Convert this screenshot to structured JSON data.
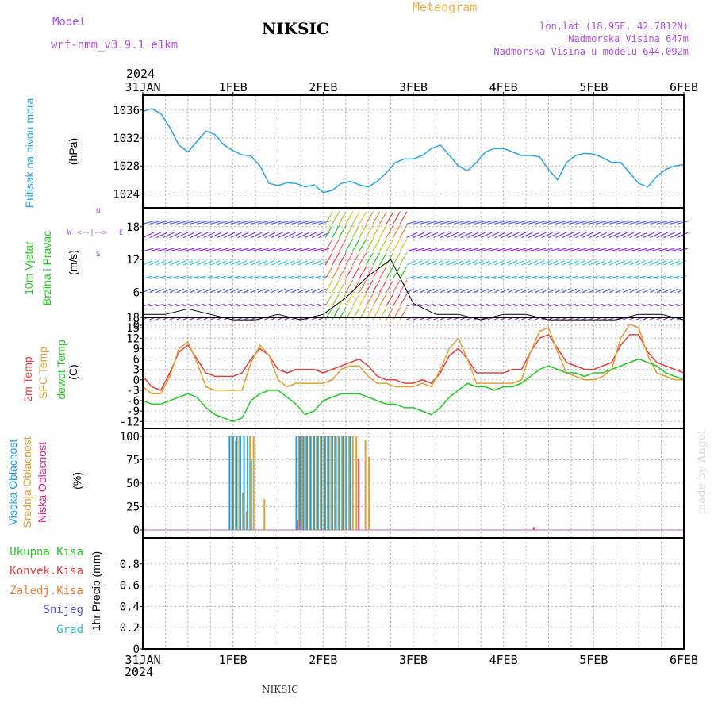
{
  "header": {
    "model_label": "Model",
    "model_name": "wrf-nmm_v3.9.1  e1km",
    "station": "NIKSIC",
    "meteogram_label": "Meteogram",
    "lonlat": "lon,lat (18.95E, 42.7812N)",
    "altitude": "Nadmorska Visina 647m",
    "model_altitude": "Nadmorska Visina u modelu 644.092m",
    "footer_station": "NIKSIC",
    "credit": "made by Angel"
  },
  "time_axis": {
    "year": "2024",
    "ticks": [
      "31JAN",
      "1FEB",
      "2FEB",
      "3FEB",
      "4FEB",
      "5FEB",
      "6FEB"
    ]
  },
  "panel_labels": {
    "pressure": {
      "name": "Pritisak na nivou mora",
      "unit": "(hPa)"
    },
    "wind": {
      "name1": "10m Vjetar",
      "name2": "Brzina i Pravac",
      "unit": "(m/s)",
      "compass_n": "N",
      "compass_s": "S",
      "compass_w": "W",
      "compass_e": "E"
    },
    "temp": {
      "l1": "2m Temp",
      "l2": "SFC Temp",
      "l3": "dewpt Temp",
      "unit": "(C)"
    },
    "cloud": {
      "l1": "Visoka Oblacnost",
      "l2": "Srednja Oblacnost",
      "l3": "Niska Oblacnost",
      "unit": "(%)"
    },
    "precip": {
      "items": [
        "Ukupna Kisa",
        "Konvek.Kisa",
        "Zaledj.Kisa",
        "Snijeg",
        "Grad"
      ],
      "unit": "1hr Precip (mm)"
    }
  },
  "colors": {
    "pressure": "#29a3e8",
    "t2m": "#e84040",
    "tsfc": "#e0a030",
    "dewpt": "#22cc22",
    "cloud_high": "#1aa0e8",
    "cloud_mid": "#e0a030",
    "cloud_low": "#e0208c",
    "wind_label": "#22cc22",
    "wind_label2": "#22cc22",
    "purple": "#b050e0",
    "orange_title": "#f0b040"
  },
  "chart_data": [
    {
      "type": "line",
      "name": "pressure",
      "ylim": [
        1022,
        1037
      ],
      "yticks": [
        "1024",
        "1028",
        "1032",
        "1036"
      ],
      "x_days": [
        0.0,
        0.1,
        0.2,
        0.3,
        0.4,
        0.5,
        0.6,
        0.7,
        0.8,
        0.9,
        1.0,
        1.1,
        1.2,
        1.3,
        1.4,
        1.5,
        1.6,
        1.7,
        1.8,
        1.9,
        2.0,
        2.1,
        2.2,
        2.3,
        2.4,
        2.5,
        2.6,
        2.7,
        2.8,
        2.9,
        3.0,
        3.1,
        3.2,
        3.3,
        3.4,
        3.5,
        3.6,
        3.7,
        3.8,
        3.9,
        4.0,
        4.1,
        4.2,
        4.3,
        4.4,
        4.5,
        4.6,
        4.7,
        4.8,
        4.9,
        5.0,
        5.1,
        5.2,
        5.3,
        5.4,
        5.5,
        5.6,
        5.7,
        5.8,
        5.9,
        6.0
      ],
      "series": [
        {
          "values": [
            1035.8,
            1036.2,
            1035.5,
            1033.5,
            1031.0,
            1030.0,
            1031.5,
            1033.0,
            1032.5,
            1031.0,
            1030.2,
            1029.6,
            1029.4,
            1028.0,
            1025.5,
            1025.2,
            1025.6,
            1025.5,
            1025.0,
            1025.3,
            1024.2,
            1024.5,
            1025.5,
            1025.8,
            1025.3,
            1025.0,
            1025.8,
            1027.0,
            1028.5,
            1029.0,
            1029.0,
            1029.5,
            1030.5,
            1031.0,
            1029.5,
            1028.0,
            1027.3,
            1028.5,
            1030.0,
            1030.5,
            1030.5,
            1030.0,
            1029.5,
            1029.5,
            1029.3,
            1027.5,
            1026.0,
            1028.5,
            1029.5,
            1029.8,
            1029.7,
            1029.2,
            1028.5,
            1028.5,
            1027.0,
            1025.5,
            1025.0,
            1026.5,
            1027.5,
            1028.0,
            1028.2
          ]
        }
      ]
    },
    {
      "type": "line",
      "name": "wind_speed",
      "ylim": [
        0,
        20
      ],
      "yticks": [
        "0",
        "6",
        "12",
        "18"
      ],
      "x_days": [
        0.0,
        0.25,
        0.5,
        0.75,
        1.0,
        1.25,
        1.5,
        1.75,
        2.0,
        2.25,
        2.5,
        2.75,
        3.0,
        3.25,
        3.5,
        3.75,
        4.0,
        4.25,
        4.5,
        4.75,
        5.0,
        5.25,
        5.5,
        5.75,
        6.0
      ],
      "series": [
        {
          "values": [
            2,
            2,
            3,
            2,
            1,
            1,
            2,
            1,
            2,
            5,
            9,
            12,
            4,
            2,
            2,
            1,
            2,
            2,
            1,
            1,
            1,
            1,
            2,
            2,
            1
          ]
        }
      ]
    },
    {
      "type": "line",
      "name": "temperature",
      "ylim": [
        -14,
        18
      ],
      "yticks": [
        "-12",
        "-9",
        "-6",
        "-3",
        "0",
        "3",
        "6",
        "9",
        "12",
        "15",
        "18"
      ],
      "x_days": [
        0.0,
        0.1,
        0.2,
        0.3,
        0.4,
        0.5,
        0.6,
        0.7,
        0.8,
        0.9,
        1.0,
        1.1,
        1.2,
        1.3,
        1.4,
        1.5,
        1.6,
        1.7,
        1.8,
        1.9,
        2.0,
        2.1,
        2.2,
        2.3,
        2.4,
        2.5,
        2.6,
        2.7,
        2.8,
        2.9,
        3.0,
        3.1,
        3.2,
        3.3,
        3.4,
        3.5,
        3.6,
        3.7,
        3.8,
        3.9,
        4.0,
        4.1,
        4.2,
        4.3,
        4.4,
        4.5,
        4.6,
        4.7,
        4.8,
        4.9,
        5.0,
        5.1,
        5.2,
        5.3,
        5.4,
        5.5,
        5.6,
        5.7,
        5.8,
        5.9,
        6.0
      ],
      "series": [
        {
          "name": "2m Temp",
          "values": [
            1,
            -2,
            -3,
            2,
            8,
            10,
            6,
            2,
            1,
            1,
            1,
            2,
            6,
            9,
            7,
            3,
            2,
            3,
            3,
            3,
            2,
            3,
            4,
            5,
            6,
            4,
            1,
            0,
            0,
            -1,
            -1,
            0,
            -1,
            2,
            7,
            9,
            6,
            2,
            2,
            2,
            2,
            3,
            3,
            8,
            12,
            13,
            9,
            5,
            4,
            3,
            3,
            4,
            5,
            10,
            13,
            13,
            8,
            5,
            4,
            3,
            2
          ]
        },
        {
          "name": "SFC Temp",
          "values": [
            -2,
            -4,
            -4,
            1,
            9,
            11,
            5,
            -2,
            -3,
            -3,
            -3,
            -3,
            5,
            10,
            7,
            0,
            -2,
            -1,
            -1,
            -1,
            -1,
            0,
            3,
            4,
            4,
            1,
            -1,
            -1,
            -2,
            -2,
            -2,
            -1,
            -2,
            3,
            9,
            12,
            6,
            -1,
            -1,
            -1,
            -1,
            -1,
            0,
            8,
            14,
            15,
            8,
            2,
            1,
            0,
            0,
            1,
            3,
            12,
            16,
            15,
            7,
            2,
            1,
            0,
            0
          ]
        },
        {
          "name": "dewpt Temp",
          "values": [
            -6,
            -7,
            -7,
            -6,
            -5,
            -4,
            -5,
            -8,
            -10,
            -11,
            -12,
            -11,
            -6,
            -4,
            -3,
            -3,
            -5,
            -7,
            -10,
            -9,
            -6,
            -5,
            -4,
            -4,
            -4,
            -5,
            -6,
            -7,
            -7,
            -8,
            -8,
            -9,
            -10,
            -8,
            -5,
            -3,
            -1,
            -2,
            -2,
            -3,
            -2,
            -2,
            -1,
            1,
            3,
            4,
            3,
            2,
            2,
            1,
            2,
            2,
            3,
            4,
            5,
            6,
            5,
            4,
            2,
            1,
            0
          ]
        }
      ]
    },
    {
      "type": "bar",
      "name": "cloud_cover",
      "ylim": [
        0,
        100
      ],
      "yticks": [
        "0",
        "25",
        "50",
        "75",
        "100"
      ],
      "x_days": [
        0.98,
        1.02,
        1.06,
        1.1,
        1.14,
        1.18,
        1.22,
        1.34,
        1.68,
        1.72,
        1.76,
        1.8,
        1.84,
        1.88,
        1.92,
        1.96,
        2.0,
        2.04,
        2.08,
        2.12,
        2.16,
        2.2,
        2.24,
        2.28,
        2.32,
        2.36,
        2.46,
        2.5,
        4.3
      ],
      "series": [
        {
          "name": "Visoka Oblacnost",
          "values": [
            100,
            100,
            100,
            100,
            100,
            100,
            76,
            0,
            0,
            100,
            100,
            100,
            100,
            100,
            100,
            100,
            100,
            100,
            100,
            100,
            100,
            100,
            100,
            100,
            100,
            0,
            0,
            0,
            0
          ]
        },
        {
          "name": "Srednja Oblacnost",
          "values": [
            100,
            95,
            100,
            40,
            20,
            100,
            100,
            33,
            0,
            100,
            100,
            100,
            100,
            100,
            100,
            100,
            100,
            100,
            100,
            100,
            100,
            100,
            100,
            100,
            100,
            100,
            96,
            78,
            0
          ]
        },
        {
          "name": "Niska Oblacnost",
          "values": [
            0,
            0,
            0,
            0,
            0,
            0,
            0,
            0,
            10,
            10,
            0,
            0,
            0,
            0,
            0,
            0,
            0,
            0,
            0,
            0,
            0,
            0,
            0,
            0,
            0,
            76,
            0,
            0,
            3
          ]
        }
      ]
    },
    {
      "type": "bar",
      "name": "precip",
      "ylim": [
        0,
        1
      ],
      "yticks": [
        "0",
        "0.2",
        "0.4",
        "0.6",
        "0.8"
      ],
      "series": [
        {
          "name": "Ukupna Kisa",
          "values": []
        }
      ]
    }
  ]
}
